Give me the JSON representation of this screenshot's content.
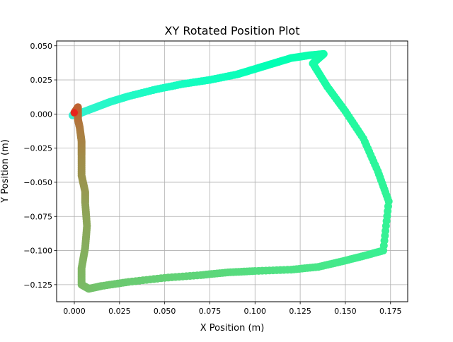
{
  "chart_data": {
    "type": "scatter",
    "title": "XY Rotated Position Plot",
    "xlabel": "X Position (m)",
    "ylabel": "Y Position (m)",
    "xlim": [
      -0.0098,
      0.1845
    ],
    "ylim": [
      -0.1375,
      0.0535
    ],
    "x_ticks": [
      0.0,
      0.025,
      0.05,
      0.075,
      0.1,
      0.125,
      0.15,
      0.175
    ],
    "x_tick_labels": [
      "0.000",
      "0.025",
      "0.050",
      "0.075",
      "0.100",
      "0.125",
      "0.150",
      "0.175"
    ],
    "y_ticks": [
      0.05,
      0.025,
      0.0,
      -0.025,
      -0.05,
      -0.075,
      -0.1,
      -0.125
    ],
    "y_tick_labels": [
      "0.050",
      "0.025",
      "0.000",
      "−0.025",
      "−0.050",
      "−0.075",
      "−0.100",
      "−0.125"
    ],
    "grid": true,
    "colormap": "rainbow",
    "color_by": "sample order",
    "start_marker_color": "#e8221c",
    "x": [
      -0.001,
      0.002,
      0.006,
      0.012,
      0.02,
      0.03,
      0.045,
      0.06,
      0.075,
      0.09,
      0.1,
      0.11,
      0.12,
      0.13,
      0.138,
      0.132,
      0.14,
      0.15,
      0.16,
      0.168,
      0.174,
      0.171,
      0.16,
      0.148,
      0.135,
      0.12,
      0.1,
      0.085,
      0.07,
      0.05,
      0.03,
      0.015,
      0.008,
      0.004,
      0.004,
      0.006,
      0.007,
      0.006,
      0.006,
      0.004,
      0.004,
      0.004,
      0.003,
      0.002,
      0.002,
      0.002,
      0.0
    ],
    "y": [
      -0.001,
      0.0,
      0.002,
      0.005,
      0.009,
      0.013,
      0.018,
      0.022,
      0.025,
      0.029,
      0.033,
      0.037,
      0.041,
      0.043,
      0.044,
      0.037,
      0.02,
      0.002,
      -0.018,
      -0.042,
      -0.064,
      -0.1,
      -0.104,
      -0.108,
      -0.112,
      -0.114,
      -0.115,
      -0.116,
      -0.118,
      -0.12,
      -0.123,
      -0.126,
      -0.128,
      -0.125,
      -0.113,
      -0.098,
      -0.082,
      -0.065,
      -0.057,
      -0.045,
      -0.03,
      -0.02,
      -0.01,
      -0.004,
      0.0,
      0.005,
      0.001
    ]
  }
}
